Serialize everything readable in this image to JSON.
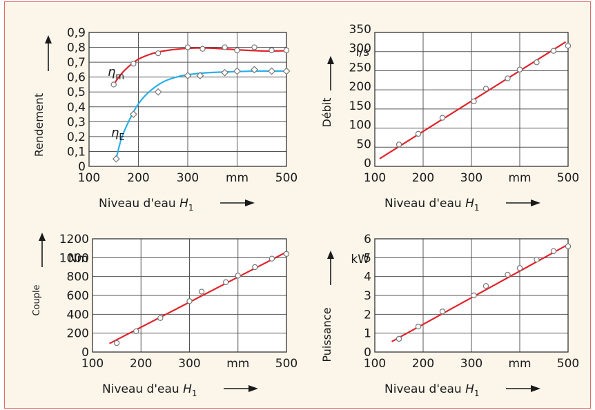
{
  "colors": {
    "panel_background": "#fbf5ea",
    "border": "#e06a6a",
    "plot_background": "#ffffff",
    "grid": "#555555",
    "axis_text": "#1a1a1a",
    "curve_red": "#e0232a",
    "curve_blue": "#27b0e6",
    "markers": "#777777"
  },
  "chart_data": [
    {
      "type": "line",
      "panel": "top-left",
      "xlabel": "Niveau d'eau",
      "xlabel_symbol": "H",
      "xlabel_subscript": "1",
      "ylabel": "Rendement",
      "x_ticks": [
        "100",
        "200",
        "300",
        "mm",
        "500"
      ],
      "y_ticks": [
        "0",
        "0,1",
        "0,2",
        "0,3",
        "0,4",
        "0,5",
        "0,6",
        "0,7",
        "0,8",
        "0,9"
      ],
      "xlim": [
        100,
        500
      ],
      "ylim": [
        0,
        0.9
      ],
      "grid": true,
      "series": [
        {
          "name": "ηm",
          "symbol": "η",
          "subscript": "m",
          "color": "#e0232a",
          "marker": "circle",
          "points": [
            [
              150,
              0.55
            ],
            [
              190,
              0.69
            ],
            [
              240,
              0.76
            ],
            [
              300,
              0.8
            ],
            [
              330,
              0.79
            ],
            [
              375,
              0.8
            ],
            [
              400,
              0.78
            ],
            [
              435,
              0.8
            ],
            [
              470,
              0.78
            ],
            [
              500,
              0.78
            ]
          ],
          "curve": [
            [
              150,
              0.55
            ],
            [
              165,
              0.62
            ],
            [
              180,
              0.67
            ],
            [
              200,
              0.72
            ],
            [
              230,
              0.76
            ],
            [
              260,
              0.78
            ],
            [
              300,
              0.793
            ],
            [
              340,
              0.795
            ],
            [
              380,
              0.788
            ],
            [
              420,
              0.78
            ],
            [
              460,
              0.775
            ],
            [
              500,
              0.777
            ]
          ]
        },
        {
          "name": "ηE",
          "symbol": "η",
          "subscript": "E",
          "color": "#27b0e6",
          "marker": "diamond",
          "points": [
            [
              155,
              0.05
            ],
            [
              190,
              0.35
            ],
            [
              240,
              0.5
            ],
            [
              300,
              0.61
            ],
            [
              325,
              0.61
            ],
            [
              375,
              0.63
            ],
            [
              400,
              0.64
            ],
            [
              435,
              0.65
            ],
            [
              470,
              0.64
            ],
            [
              500,
              0.64
            ]
          ],
          "curve": [
            [
              155,
              0.05
            ],
            [
              165,
              0.18
            ],
            [
              180,
              0.3
            ],
            [
              200,
              0.42
            ],
            [
              225,
              0.51
            ],
            [
              255,
              0.575
            ],
            [
              290,
              0.61
            ],
            [
              330,
              0.627
            ],
            [
              380,
              0.635
            ],
            [
              440,
              0.64
            ],
            [
              500,
              0.64
            ]
          ]
        }
      ]
    },
    {
      "type": "scatter",
      "panel": "top-right",
      "xlabel": "Niveau d'eau",
      "xlabel_symbol": "H",
      "xlabel_subscript": "1",
      "ylabel": "Débit",
      "unit_label": "l/s",
      "x_ticks": [
        "100",
        "200",
        "300",
        "mm",
        "500"
      ],
      "y_ticks": [
        "0",
        "50",
        "100",
        "150",
        "200",
        "250",
        "300",
        "350"
      ],
      "xlim": [
        100,
        500
      ],
      "ylim": [
        0,
        350
      ],
      "grid": true,
      "points": [
        [
          150,
          57
        ],
        [
          190,
          85
        ],
        [
          240,
          127
        ],
        [
          305,
          170
        ],
        [
          330,
          203
        ],
        [
          375,
          230
        ],
        [
          400,
          253
        ],
        [
          435,
          272
        ],
        [
          470,
          302
        ],
        [
          500,
          315
        ]
      ],
      "fit_line": [
        [
          110,
          20
        ],
        [
          495,
          325
        ]
      ]
    },
    {
      "type": "scatter",
      "panel": "bottom-left",
      "xlabel": "Niveau d'eau",
      "xlabel_symbol": "H",
      "xlabel_subscript": "1",
      "ylabel": "Couple",
      "unit_label": "Nm",
      "x_ticks": [
        "100",
        "200",
        "300",
        "mm",
        "500"
      ],
      "y_ticks": [
        "0",
        "200",
        "400",
        "600",
        "800",
        "1000",
        "1200"
      ],
      "xlim": [
        100,
        500
      ],
      "ylim": [
        0,
        1200
      ],
      "grid": true,
      "points": [
        [
          150,
          95
        ],
        [
          190,
          220
        ],
        [
          240,
          360
        ],
        [
          300,
          540
        ],
        [
          325,
          640
        ],
        [
          375,
          740
        ],
        [
          400,
          810
        ],
        [
          435,
          900
        ],
        [
          470,
          990
        ],
        [
          500,
          1040
        ]
      ],
      "fit_line": [
        [
          135,
          90
        ],
        [
          500,
          1060
        ]
      ]
    },
    {
      "type": "scatter",
      "panel": "bottom-right",
      "xlabel": "Niveau d'eau",
      "xlabel_symbol": "H",
      "xlabel_subscript": "1",
      "ylabel": "Puissance",
      "unit_label": "kW",
      "x_ticks": [
        "100",
        "200",
        "300",
        "mm",
        "500"
      ],
      "y_ticks": [
        "0",
        "1",
        "2",
        "3",
        "4",
        "5",
        "6"
      ],
      "xlim": [
        100,
        500
      ],
      "ylim": [
        0,
        6
      ],
      "grid": true,
      "points": [
        [
          150,
          0.7
        ],
        [
          190,
          1.35
        ],
        [
          240,
          2.15
        ],
        [
          305,
          3.0
        ],
        [
          330,
          3.5
        ],
        [
          375,
          4.1
        ],
        [
          400,
          4.45
        ],
        [
          435,
          4.9
        ],
        [
          470,
          5.35
        ],
        [
          500,
          5.6
        ]
      ],
      "fit_line": [
        [
          135,
          0.55
        ],
        [
          500,
          5.7
        ]
      ]
    }
  ]
}
